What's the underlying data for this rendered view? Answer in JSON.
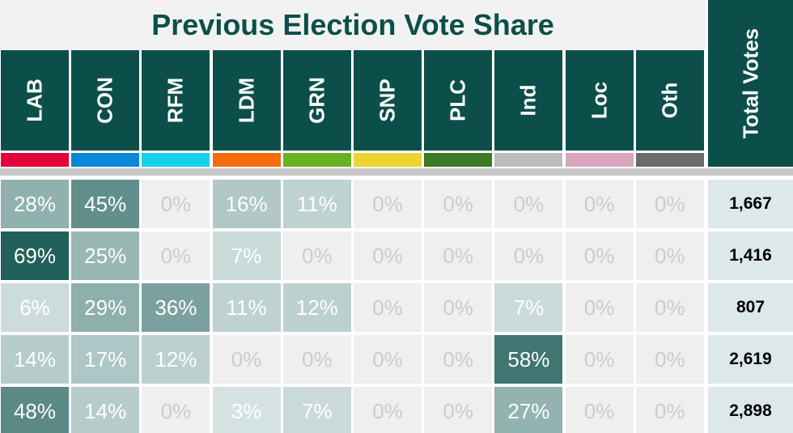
{
  "header": {
    "title": "Previous Election Vote Share",
    "total_label": "Total Votes"
  },
  "columns": [
    {
      "label": "LAB",
      "color": "#e4003b"
    },
    {
      "label": "CON",
      "color": "#0a87d6"
    },
    {
      "label": "RFM",
      "color": "#14d3ea"
    },
    {
      "label": "LDM",
      "color": "#f56c0c"
    },
    {
      "label": "GRN",
      "color": "#6ab023"
    },
    {
      "label": "SNP",
      "color": "#ecd531"
    },
    {
      "label": "PLC",
      "color": "#3c7a26"
    },
    {
      "label": "Ind",
      "color": "#bcbcbc"
    },
    {
      "label": "Loc",
      "color": "#dba5bf"
    },
    {
      "label": "Oth",
      "color": "#6b6b6b"
    }
  ],
  "rows": [
    {
      "shares": [
        "28%",
        "45%",
        "0%",
        "16%",
        "11%",
        "0%",
        "0%",
        "0%",
        "0%",
        "0%"
      ],
      "total": "1,667"
    },
    {
      "shares": [
        "69%",
        "25%",
        "0%",
        "7%",
        "0%",
        "0%",
        "0%",
        "0%",
        "0%",
        "0%"
      ],
      "total": "1,416"
    },
    {
      "shares": [
        "6%",
        "29%",
        "36%",
        "11%",
        "12%",
        "0%",
        "0%",
        "7%",
        "0%",
        "0%"
      ],
      "total": "807"
    },
    {
      "shares": [
        "14%",
        "17%",
        "12%",
        "0%",
        "0%",
        "0%",
        "0%",
        "58%",
        "0%",
        "0%"
      ],
      "total": "2,619"
    },
    {
      "shares": [
        "48%",
        "14%",
        "0%",
        "3%",
        "7%",
        "0%",
        "0%",
        "27%",
        "0%",
        "0%"
      ],
      "total": "2,898"
    }
  ]
}
